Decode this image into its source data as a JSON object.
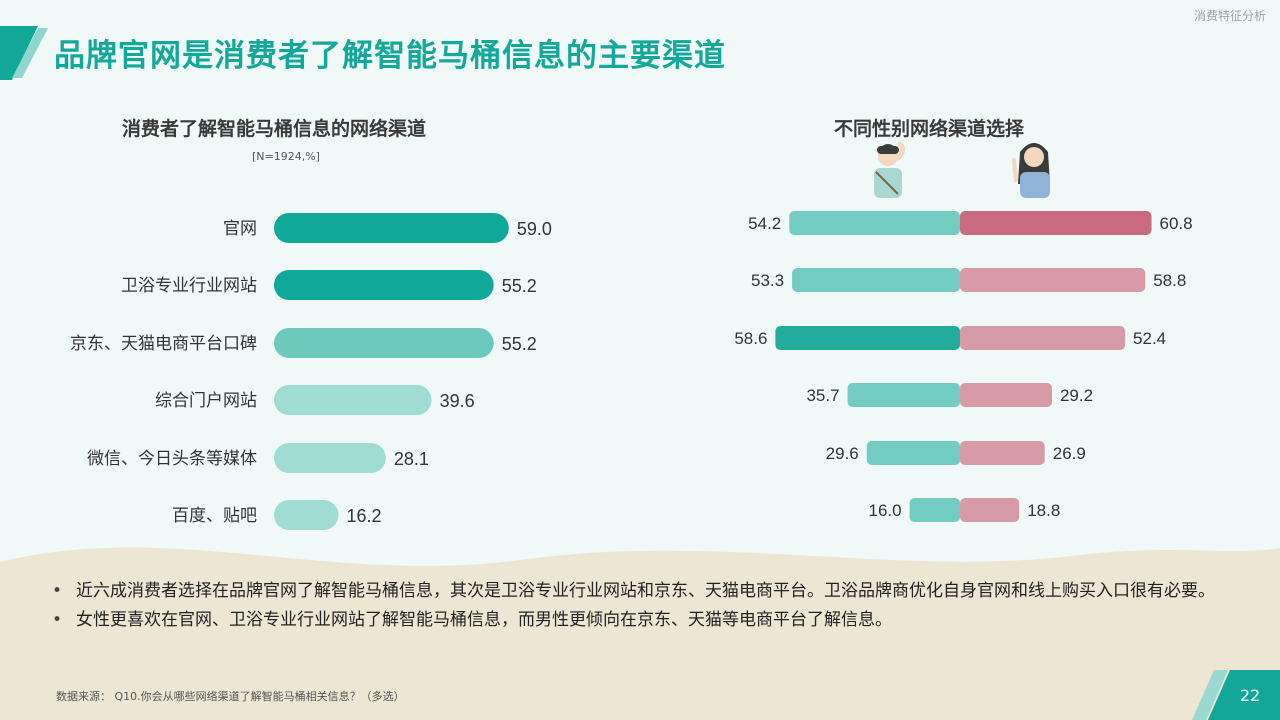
{
  "header": {
    "section_tag": "消费特征分析",
    "title": "品牌官网是消费者了解智能马桶信息的主要渠道"
  },
  "chart_data": [
    {
      "type": "bar",
      "orientation": "horizontal",
      "title": "消费者了解智能马桶信息的网络渠道",
      "note": "[N=1924,%]",
      "categories": [
        "官网",
        "卫浴专业行业网站",
        "京东、天猫电商平台口碑",
        "综合门户网站",
        "微信、今日头条等媒体",
        "百度、贴吧"
      ],
      "values": [
        59.0,
        55.2,
        55.2,
        39.6,
        28.1,
        16.2
      ],
      "value_labels": [
        "59.0",
        "55.2",
        "55.2",
        "39.6",
        "28.1",
        "16.2"
      ],
      "bar_colors": [
        "#10a899",
        "#10a899",
        "#6ccabd",
        "#a0dcd4",
        "#a0dcd4",
        "#a0dcd4"
      ],
      "grid": false,
      "legend": "none"
    },
    {
      "type": "bar",
      "orientation": "diverging-horizontal",
      "title": "不同性别网络渠道选择",
      "categories": [
        "官网",
        "卫浴专业行业网站",
        "京东、天猫电商平台口碑",
        "综合门户网站",
        "微信、今日头条等媒体",
        "百度、贴吧"
      ],
      "series": [
        {
          "values": [
            54.2,
            53.3,
            58.6,
            35.7,
            29.6,
            16.0
          ],
          "value_labels": [
            "54.2",
            "53.3",
            "58.6",
            "35.7",
            "29.6",
            "16.0"
          ],
          "color": "#72ccc2",
          "highlight_color": "#22ad9e",
          "highlight_index": 2,
          "icon": "male-figure-icon"
        },
        {
          "values": [
            60.8,
            58.8,
            52.4,
            29.2,
            26.9,
            18.8
          ],
          "value_labels": [
            "60.8",
            "58.8",
            "52.4",
            "29.2",
            "26.9",
            "18.8"
          ],
          "color": "#d69ba6",
          "highlight_color": "#c96b80",
          "highlight_index": 0,
          "icon": "female-figure-icon"
        }
      ],
      "grid": false,
      "legend": "icons-above"
    }
  ],
  "bullets": [
    "近六成消费者选择在品牌官网了解智能马桶信息，其次是卫浴专业行业网站和京东、天猫电商平台。卫浴品牌商优化自身官网和线上购买入口很有必要。",
    "女性更喜欢在官网、卫浴专业行业网站了解智能马桶信息，而男性更倾向在京东、天猫等电商平台了解信息。"
  ],
  "footer": {
    "source": "数据来源： Q10.你会从哪些网络渠道了解智能马桶相关信息？（多选）",
    "page_number": "22"
  },
  "colors": {
    "accent": "#13a99a",
    "background": "#f1f8f8",
    "sand": "#ede5d2"
  }
}
